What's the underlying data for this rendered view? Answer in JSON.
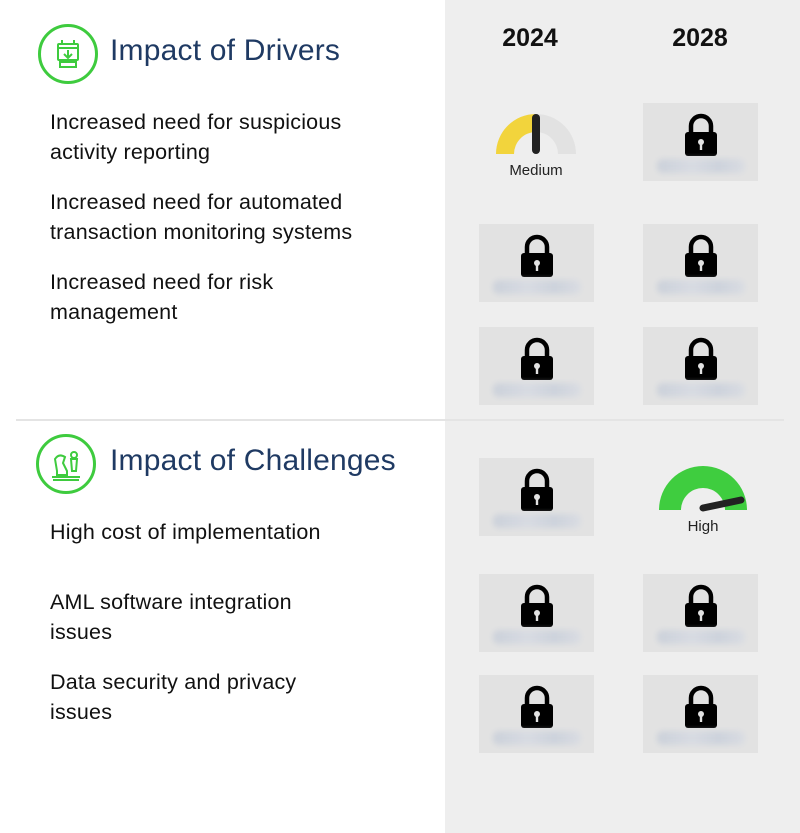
{
  "drivers_section": {
    "title": "Impact of Drivers",
    "icon": "tools-icon",
    "items": [
      {
        "label_line1": "Increased need for suspicious",
        "label_line2": "activity reporting"
      },
      {
        "label_line1": "Increased need for automated",
        "label_line2": "transaction monitoring systems"
      },
      {
        "label_line1": "Increased need for risk",
        "label_line2": "management"
      }
    ]
  },
  "challenges_section": {
    "title": "Impact of Challenges",
    "icon": "chess-icon",
    "items": [
      {
        "label_line1": "High cost of implementation",
        "label_line2": ""
      },
      {
        "label_line1": "AML software integration",
        "label_line2": "issues"
      },
      {
        "label_line1": "Data security and privacy",
        "label_line2": "issues"
      }
    ]
  },
  "columns": {
    "year1": "2024",
    "year2": "2028"
  },
  "gauges": {
    "driver1_2024": {
      "label": "Medium",
      "level": 0.5,
      "color": "#f2d43c"
    },
    "challenge1_2028": {
      "label": "High",
      "level": 0.9,
      "color": "#3fcd3f"
    }
  },
  "colors": {
    "accent_green": "#3ecb3e",
    "title_navy": "#1f3a63",
    "panel_gray": "#eeeeee",
    "locked_cell": "#e2e2e2"
  }
}
